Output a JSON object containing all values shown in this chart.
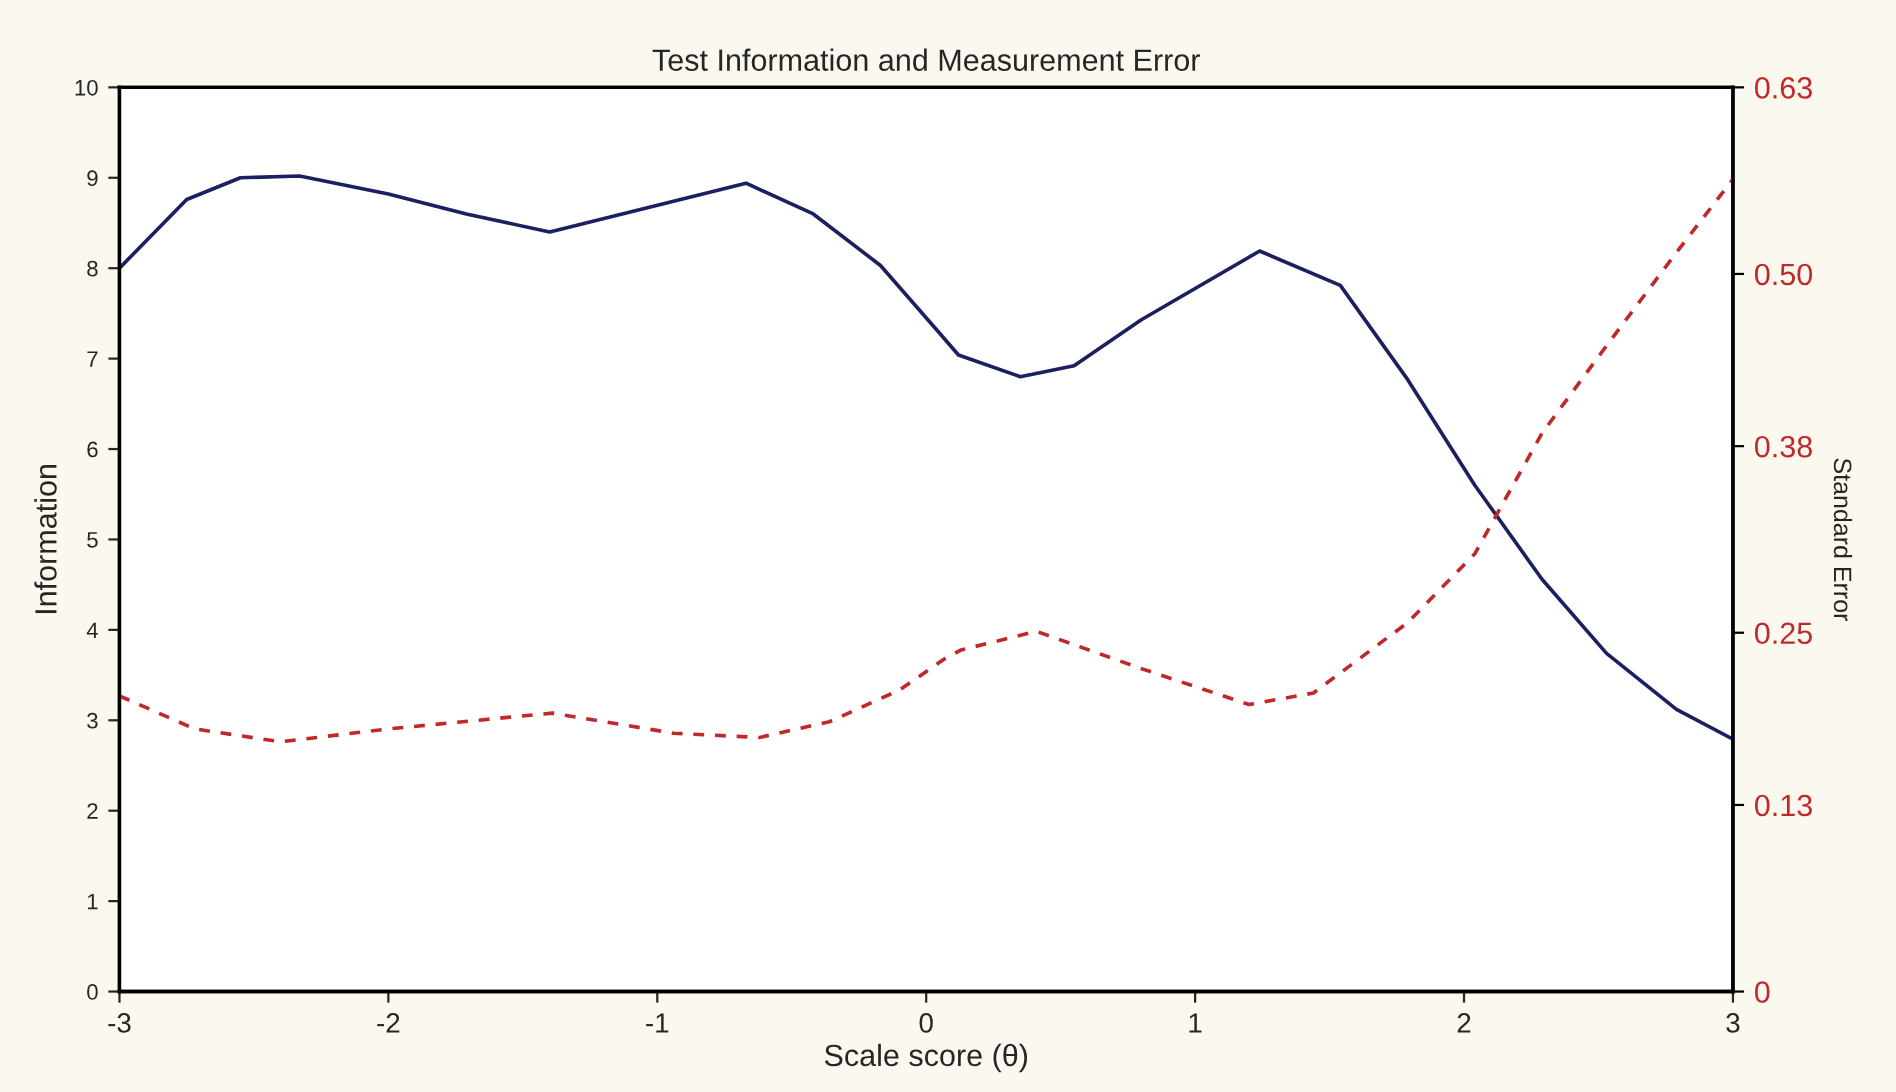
{
  "chart_data": {
    "type": "line",
    "title": "Test Information and Measurement Error",
    "xlabel": "Scale score (θ)",
    "ylabel": "Information",
    "y2label": "Standard Error",
    "series": [
      {
        "color": "#1c2060",
        "line_style": "solid",
        "x": [
          -3,
          -2.75,
          -2.55,
          -2.33,
          -2,
          -1.71,
          -1.4,
          -0.67,
          -0.42,
          -0.17,
          0.05,
          0.12,
          0.35,
          0.55,
          0.8,
          1.24,
          1.54,
          1.79,
          2.04,
          2.29,
          2.53,
          2.79,
          3
        ],
        "values": [
          8.0,
          8.76,
          9.0,
          9.02,
          8.82,
          8.6,
          8.4,
          8.94,
          8.6,
          8.03,
          7.28,
          7.04,
          6.8,
          6.92,
          7.43,
          8.19,
          7.81,
          6.77,
          5.6,
          4.56,
          3.74,
          3.12,
          2.79
        ]
      },
      {
        "color": "#c0282a",
        "line_style": "dashed",
        "axis": "y2",
        "x": [
          -3,
          -2.72,
          -2.4,
          -2.0,
          -1.39,
          -0.94,
          -0.62,
          -0.36,
          -0.1,
          0.07,
          0.13,
          0.41,
          0.8,
          1.2,
          1.44,
          1.79,
          2.04,
          2.29,
          2.53,
          2.79,
          3
        ],
        "values": [
          0.206,
          0.183,
          0.174,
          0.183,
          0.194,
          0.18,
          0.177,
          0.188,
          0.21,
          0.232,
          0.238,
          0.251,
          0.225,
          0.2,
          0.208,
          0.257,
          0.305,
          0.389,
          0.45,
          0.515,
          0.566
        ]
      }
    ],
    "xlim": [
      -3,
      3
    ],
    "xticks": [
      -3,
      -2,
      -1,
      0,
      1,
      2,
      3
    ],
    "ylim": [
      0,
      10
    ],
    "yticks": [
      0,
      1,
      2,
      3,
      4,
      5,
      6,
      7,
      8,
      9,
      10
    ],
    "y2lim": [
      0,
      0.63
    ],
    "y2ticks": [
      0,
      0.13,
      0.25,
      0.38,
      {
        "value": 0.5,
        "label": "0.50"
      },
      0.63
    ],
    "grid": false,
    "legend": false
  }
}
